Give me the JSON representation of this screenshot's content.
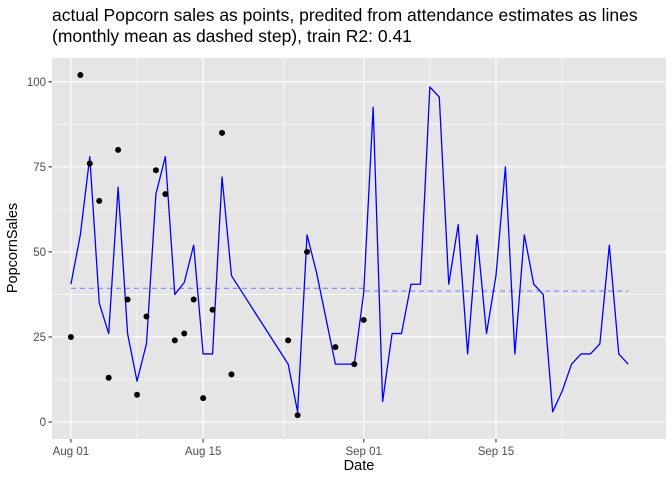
{
  "chart_data": {
    "type": "line",
    "title_lines": [
      "actual Popcorn sales as points, predited from attendance estimates as lines",
      "(monthly mean as dashed step), train R2:  0.41"
    ],
    "xlabel": "Date",
    "ylabel": "PopcornSales",
    "x_date_range": [
      "2023-07-30",
      "2023-10-03"
    ],
    "ylim": [
      -5,
      107
    ],
    "x_ticks": [
      {
        "date": "2023-08-01",
        "label": "Aug 01"
      },
      {
        "date": "2023-08-15",
        "label": "Aug 15"
      },
      {
        "date": "2023-09-01",
        "label": "Sep 01"
      },
      {
        "date": "2023-09-15",
        "label": "Sep 15"
      }
    ],
    "y_ticks": [
      0,
      25,
      50,
      75,
      100
    ],
    "grid": true,
    "panel_background": "#e5e5e5",
    "grid_color": "#ffffff",
    "actual_color": "#000000",
    "predicted_color": "#0000ff",
    "mean_color": "#8080ff",
    "series": [
      {
        "name": "actual",
        "style": "points",
        "x": [
          "2023-08-01",
          "2023-08-02",
          "2023-08-03",
          "2023-08-04",
          "2023-08-05",
          "2023-08-06",
          "2023-08-07",
          "2023-08-08",
          "2023-08-09",
          "2023-08-10",
          "2023-08-11",
          "2023-08-12",
          "2023-08-13",
          "2023-08-14",
          "2023-08-15",
          "2023-08-16",
          "2023-08-17",
          "2023-08-18",
          "2023-08-24",
          "2023-08-25",
          "2023-08-26",
          "2023-08-29",
          "2023-08-31",
          "2023-09-01"
        ],
        "y": [
          25,
          102,
          76,
          65,
          13,
          80,
          36,
          8,
          31,
          74,
          67,
          24,
          26,
          36,
          7,
          33,
          85,
          14,
          24,
          2,
          50,
          22,
          17,
          30
        ]
      },
      {
        "name": "predicted",
        "style": "line",
        "x": [
          "2023-08-01",
          "2023-08-02",
          "2023-08-03",
          "2023-08-04",
          "2023-08-05",
          "2023-08-06",
          "2023-08-07",
          "2023-08-08",
          "2023-08-09",
          "2023-08-10",
          "2023-08-11",
          "2023-08-12",
          "2023-08-13",
          "2023-08-14",
          "2023-08-15",
          "2023-08-16",
          "2023-08-17",
          "2023-08-18",
          "2023-08-24",
          "2023-08-25",
          "2023-08-26",
          "2023-08-27",
          "2023-08-29",
          "2023-08-30",
          "2023-08-31",
          "2023-09-01",
          "2023-09-02",
          "2023-09-03",
          "2023-09-04",
          "2023-09-05",
          "2023-09-06",
          "2023-09-07",
          "2023-09-08",
          "2023-09-09",
          "2023-09-10",
          "2023-09-11",
          "2023-09-12",
          "2023-09-13",
          "2023-09-14",
          "2023-09-15",
          "2023-09-16",
          "2023-09-17",
          "2023-09-18",
          "2023-09-19",
          "2023-09-20",
          "2023-09-21",
          "2023-09-22",
          "2023-09-23",
          "2023-09-24",
          "2023-09-25",
          "2023-09-26",
          "2023-09-27",
          "2023-09-28",
          "2023-09-29"
        ],
        "y": [
          40.5,
          55,
          78,
          35,
          26,
          69,
          26,
          12,
          23,
          67,
          78,
          37.5,
          41,
          52,
          20,
          20,
          72,
          43,
          17,
          3,
          55,
          44,
          17,
          17,
          17,
          38,
          92.5,
          6,
          26,
          26,
          40.5,
          40.5,
          98.5,
          95.5,
          40.5,
          58,
          20,
          55,
          26,
          43,
          75,
          20,
          55,
          40.5,
          37.5,
          3,
          9,
          17,
          20,
          20,
          23,
          52,
          20,
          17
        ]
      },
      {
        "name": "monthly mean",
        "style": "dashed-step",
        "x": [
          "2023-08-01",
          "2023-09-01",
          "2023-09-01",
          "2023-09-29"
        ],
        "y": [
          39.3,
          39.3,
          38.5,
          38.5
        ]
      }
    ]
  }
}
